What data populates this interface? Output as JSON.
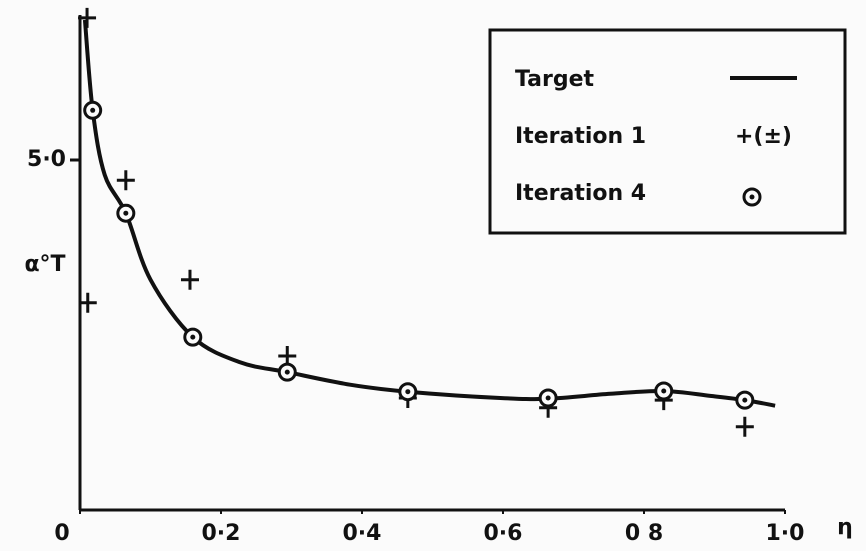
{
  "chart_data": {
    "type": "line",
    "x_label": "η",
    "y_label": "α°T",
    "xlim": [
      0,
      1.0
    ],
    "ylim": [
      0,
      7
    ],
    "xticks": [
      0,
      {
        "value": 0.2,
        "label": "0·2"
      },
      {
        "value": 0.4,
        "label": "0·4"
      },
      {
        "value": 0.6,
        "label": "0·6"
      },
      {
        "value": 0.8,
        "label": "0 8"
      },
      {
        "value": 1.0,
        "label": "1·0"
      }
    ],
    "yticks": [
      {
        "value": 5,
        "label": "5·0"
      }
    ],
    "series": [
      {
        "name": "Target",
        "style": "line",
        "color": "#111111",
        "x": [
          0.007,
          0.018,
          0.035,
          0.065,
          0.1,
          0.16,
          0.227,
          0.294,
          0.383,
          0.465,
          0.596,
          0.664,
          0.752,
          0.828,
          0.894,
          0.943,
          0.986
        ],
        "values": [
          7.0,
          5.71,
          4.79,
          4.24,
          3.29,
          2.47,
          2.11,
          1.97,
          1.79,
          1.69,
          1.6,
          1.59,
          1.66,
          1.7,
          1.63,
          1.57,
          1.49
        ]
      },
      {
        "name": "Iteration 1",
        "style": "plus",
        "marker_label": "+(±)",
        "color": "#111111",
        "x": [
          0.01,
          0.011,
          0.065,
          0.156,
          0.294,
          0.465,
          0.664,
          0.828,
          0.943
        ],
        "values": [
          7.03,
          2.96,
          4.71,
          3.29,
          2.2,
          1.6,
          1.46,
          1.57,
          1.19
        ]
      },
      {
        "name": "Iteration 4",
        "style": "circle",
        "color": "#111111",
        "x": [
          0.018,
          0.065,
          0.16,
          0.294,
          0.465,
          0.664,
          0.828,
          0.943
        ],
        "values": [
          5.71,
          4.24,
          2.47,
          1.97,
          1.69,
          1.6,
          1.7,
          1.57
        ]
      }
    ]
  }
}
